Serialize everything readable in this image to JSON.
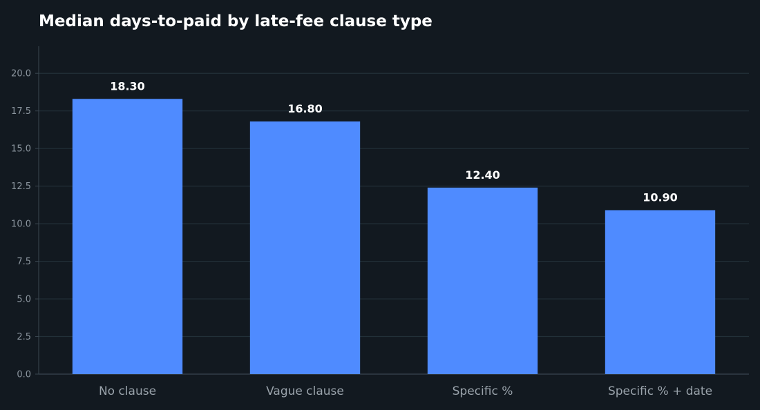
{
  "chart_data": {
    "type": "bar",
    "title": "Median days-to-paid by late-fee clause type",
    "xlabel": "",
    "ylabel": "",
    "categories": [
      "No clause",
      "Vague clause",
      "Specific %",
      "Specific % + date"
    ],
    "values": [
      18.3,
      16.8,
      12.4,
      10.9
    ],
    "value_labels": [
      "18.30",
      "16.80",
      "12.40",
      "10.90"
    ],
    "ylim": [
      0,
      21.8
    ],
    "yticks": [
      0,
      2.5,
      5,
      7.5,
      10,
      12.5,
      15,
      17.5,
      20
    ],
    "ytick_labels": [
      "0.0",
      "2.5",
      "5.0",
      "7.5",
      "10.0",
      "12.5",
      "15.0",
      "17.5",
      "20.0"
    ],
    "grid": true,
    "legend": "none",
    "colors": {
      "bar": "#4f8bff",
      "background": "#121920",
      "grid": "#223038",
      "axis": "#3a4650",
      "tick_text": "#8b959e",
      "category_text": "#9aa3ab",
      "value_text": "#ffffff",
      "title": "#ffffff"
    }
  }
}
